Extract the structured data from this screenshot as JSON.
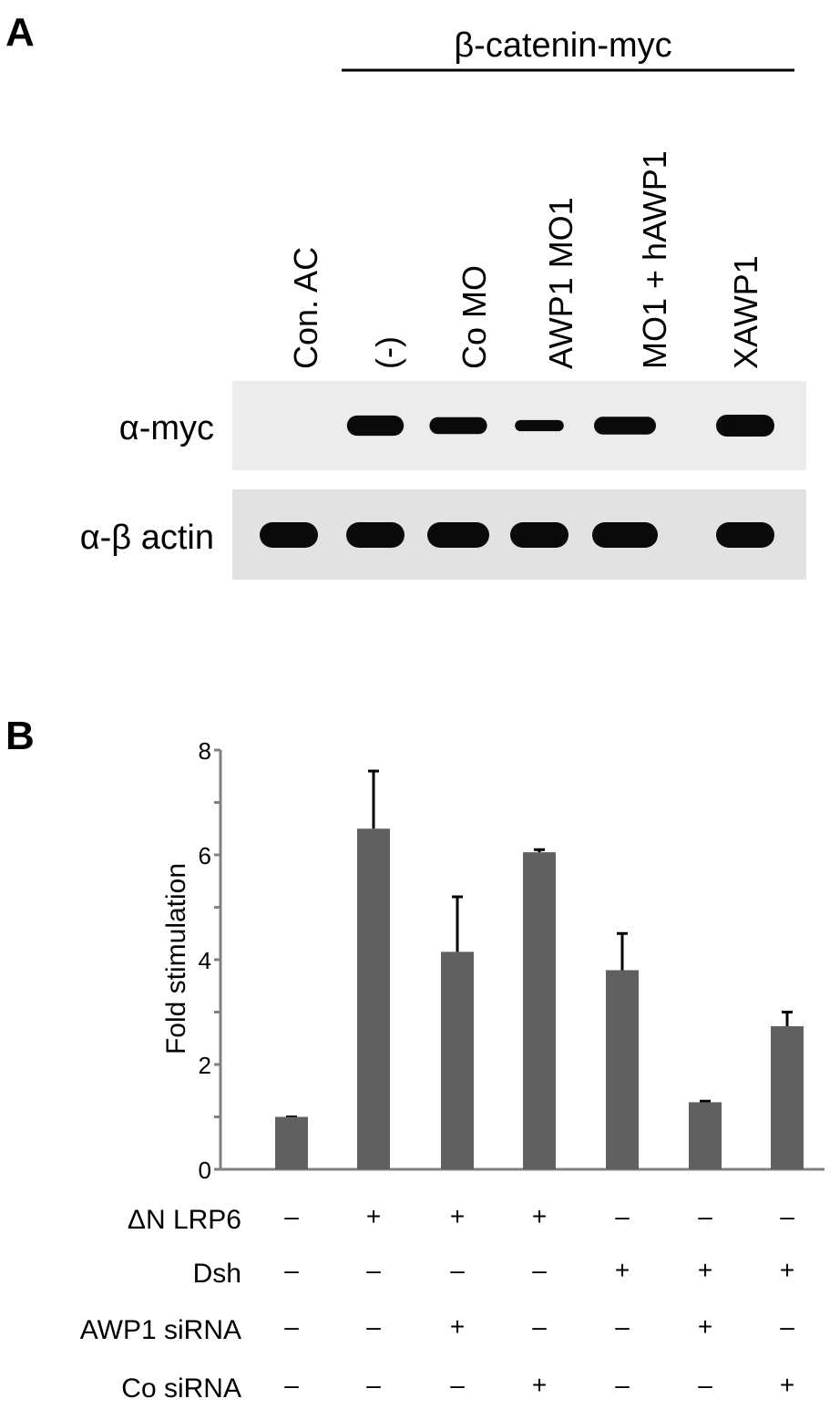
{
  "panelA": {
    "label": "A",
    "construct_label": "β-catenin-myc",
    "lanes": [
      "Con. AC",
      "(-)",
      "Co MO",
      "AWP1 MO1",
      "MO1 + hAWP1",
      "XAWP1"
    ],
    "blots": [
      {
        "label": "α-myc",
        "band_intensity": [
          0,
          0.9,
          0.7,
          0.35,
          0.75,
          1.0
        ]
      },
      {
        "label": "α-β actin",
        "band_intensity": [
          1,
          1,
          1,
          1,
          1,
          1
        ]
      }
    ]
  },
  "panelB": {
    "label": "B",
    "condition_rows": [
      {
        "label": "ΔN LRP6",
        "values": [
          "–",
          "+",
          "+",
          "+",
          "–",
          "–",
          "–"
        ]
      },
      {
        "label": "Dsh",
        "values": [
          "–",
          "–",
          "–",
          "–",
          "+",
          "+",
          "+"
        ]
      },
      {
        "label": "AWP1 siRNA",
        "values": [
          "–",
          "–",
          "+",
          "–",
          "–",
          "+",
          "–"
        ]
      },
      {
        "label": "Co siRNA",
        "values": [
          "–",
          "–",
          "–",
          "+",
          "–",
          "–",
          "+"
        ]
      }
    ]
  },
  "chart_data": {
    "type": "bar",
    "title": "",
    "xlabel": "",
    "ylabel": "Fold stimulation",
    "ylim": [
      0,
      8
    ],
    "yticks": [
      0,
      2,
      4,
      6,
      8
    ],
    "values": [
      1.0,
      6.5,
      4.15,
      6.05,
      3.8,
      1.28,
      2.73
    ],
    "error_upper": [
      1.0,
      7.6,
      5.2,
      6.1,
      4.5,
      1.3,
      3.0
    ],
    "bar_color": "#606060",
    "axis_color": "#808080",
    "grid": false
  }
}
